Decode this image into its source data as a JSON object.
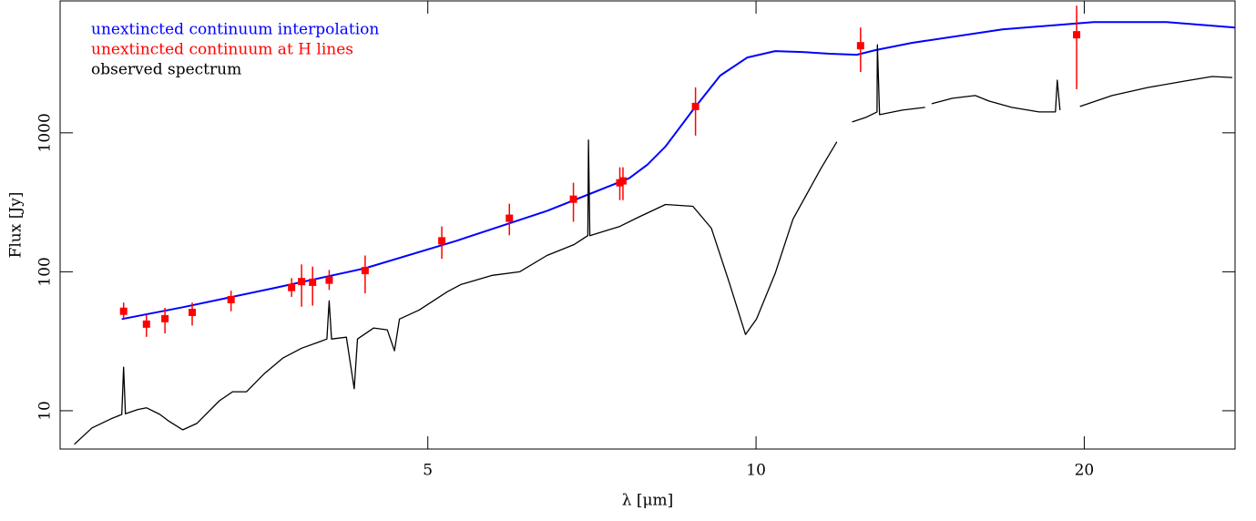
{
  "chart_data": {
    "type": "line",
    "xlabel": "λ [μm]",
    "ylabel": "Flux [Jy]",
    "xscale": "log",
    "yscale": "log",
    "xlim": [
      2.3,
      27.5
    ],
    "ylim": [
      5.3,
      8900
    ],
    "xticks": [
      5,
      10,
      20
    ],
    "yticks": [
      10,
      100,
      1000
    ],
    "legend": "upper left",
    "series": [
      {
        "name": "unextincted continuum interpolation",
        "color": "#0000ff",
        "style": "line",
        "x": [
          2.62,
          2.98,
          3.61,
          4.38,
          5.31,
          6.43,
          7.65,
          7.95,
          8.26,
          8.75,
          9.27,
          9.82,
          10.41,
          11.03,
          11.68,
          12.37,
          12.86,
          13.89,
          16.83,
          20.4,
          23.8,
          27.5
        ],
        "values": [
          45.7,
          55.6,
          76.2,
          106,
          167,
          274,
          471,
          590,
          798,
          1456,
          2583,
          3487,
          3873,
          3817,
          3706,
          3650,
          3935,
          4437,
          5561,
          6268,
          6268,
          5730
        ]
      },
      {
        "name": "unextincted continuum at H lines",
        "color": "#ff0000",
        "style": "points",
        "x": [
          2.63,
          2.76,
          2.87,
          3.04,
          3.3,
          3.75,
          3.83,
          3.92,
          4.06,
          4.38,
          5.15,
          5.94,
          6.8,
          7.5,
          7.55,
          8.8,
          12.47,
          19.68
        ],
        "values": [
          52,
          42,
          46,
          51,
          63,
          77,
          85,
          84,
          87,
          102,
          167,
          243,
          333,
          437,
          451,
          1548,
          4236,
          5080
        ],
        "lower": [
          46,
          34,
          36,
          41,
          52,
          66,
          56,
          57,
          74,
          70,
          124,
          183,
          229,
          328,
          328,
          955,
          2740,
          2060
        ],
        "upper": [
          60,
          49,
          55,
          60,
          73,
          90,
          113,
          109,
          103,
          131,
          212,
          309,
          437,
          565,
          565,
          2123,
          5730,
          8220
        ]
      },
      {
        "name": "observed spectrum",
        "color": "#000000",
        "style": "line",
        "x": [
          2.37,
          2.46,
          2.56,
          2.62,
          2.63,
          2.64,
          2.71,
          2.76,
          2.84,
          2.89,
          2.98,
          3.07,
          3.22,
          3.31,
          3.41,
          3.54,
          3.68,
          3.83,
          3.98,
          4.04,
          4.06,
          4.08,
          4.21,
          4.28,
          4.31,
          4.46,
          4.59,
          4.66,
          4.71,
          4.91,
          5.21,
          5.36,
          5.73,
          6.07,
          6.43,
          6.81,
          7.01,
          7.02,
          7.04,
          7.5,
          7.8,
          8.26,
          8.75,
          9.1,
          9.45,
          9.78,
          10.01,
          10.41,
          10.81,
          11.46,
          11.86,
          12.0,
          12.25,
          12.61,
          12.91,
          12.92,
          12.98,
          13.62,
          14.29,
          14.4,
          14.49,
          15.14,
          15.89,
          16.35,
          17.16,
          18.18,
          18.82,
          18.89,
          19.0,
          19.4,
          19.82,
          21.21,
          22.89,
          24.73,
          26.2,
          27.34
        ],
        "values": [
          5.73,
          7.52,
          8.73,
          9.4,
          20.6,
          9.5,
          10.2,
          10.5,
          9.4,
          8.47,
          7.29,
          8.1,
          11.8,
          13.7,
          13.7,
          18.5,
          23.9,
          28.2,
          31.4,
          32.8,
          61.8,
          32.8,
          33.8,
          14.4,
          32.8,
          39.4,
          38.2,
          27.0,
          45.7,
          53.1,
          71.8,
          80.9,
          94.2,
          100,
          131,
          157,
          182,
          887,
          182,
          212,
          247,
          305,
          296,
          206,
          83.6,
          35.4,
          45.7,
          97.0,
          239,
          548,
          861,
          null,
          1198,
          1291,
          1413,
          4305,
          1351,
          1456,
          1524,
          null,
          1619,
          1772,
          1854,
          1694,
          1524,
          1413,
          1413,
          2393,
          1456,
          null,
          1548,
          1854,
          2123,
          2358,
          2543,
          2500
        ]
      }
    ]
  }
}
